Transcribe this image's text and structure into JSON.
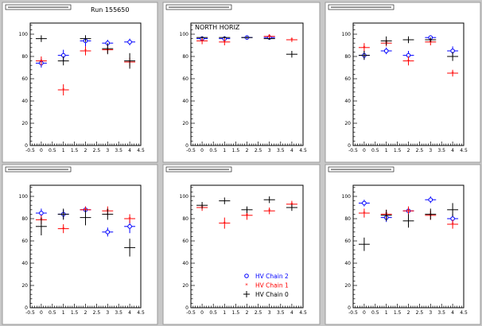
{
  "canvas": {
    "background": "#c8c8c8",
    "pad_background": "#ffffff",
    "run_label": "Run 155650",
    "colors": {
      "chain2": "#0000ff",
      "chain1": "#ff0000",
      "chain0": "#000000"
    }
  },
  "legend": [
    {
      "label": "HV Chain 2",
      "series": "chain2",
      "marker": "open-circle"
    },
    {
      "label": "HV Chain 1",
      "series": "chain1",
      "marker": "star"
    },
    {
      "label": "HV Chain 0",
      "series": "chain0",
      "marker": "cross"
    }
  ],
  "chart_data": [
    {
      "type": "scatter",
      "title": "",
      "annotation": "",
      "xlim": [
        -0.5,
        4.5
      ],
      "ylim": [
        0,
        110
      ],
      "xticks": [
        "-0.5",
        "0",
        "0.5",
        "1",
        "1.5",
        "2",
        "2.5",
        "3",
        "3.5",
        "4",
        "4.5"
      ],
      "yticks": [
        "0",
        "20",
        "40",
        "60",
        "80",
        "100"
      ],
      "series": [
        {
          "key": "chain2",
          "x": [
            0,
            1,
            2,
            3,
            4
          ],
          "y": [
            74,
            81,
            94,
            92,
            93
          ],
          "yerr": [
            4,
            5,
            5,
            3,
            3
          ]
        },
        {
          "key": "chain1",
          "x": [
            0,
            1,
            2,
            3,
            4
          ],
          "y": [
            76,
            50,
            85,
            86,
            75
          ],
          "yerr": [
            4,
            5,
            4,
            3,
            4
          ]
        },
        {
          "key": "chain0",
          "x": [
            0,
            1,
            2,
            3,
            4
          ],
          "y": [
            96,
            76,
            96,
            87,
            76
          ],
          "yerr": [
            3,
            4,
            3,
            5,
            7
          ]
        }
      ]
    },
    {
      "type": "scatter",
      "title": "",
      "annotation": "NORTH HORIZ",
      "xlim": [
        -0.5,
        4.5
      ],
      "ylim": [
        0,
        110
      ],
      "xticks": [
        "-0.5",
        "0",
        "0.5",
        "1",
        "1.5",
        "2",
        "2.5",
        "3",
        "3.5",
        "4",
        "4.5"
      ],
      "yticks": [
        "0",
        "20",
        "40",
        "60",
        "80",
        "100"
      ],
      "series": [
        {
          "key": "chain2",
          "x": [
            0,
            1,
            2,
            3
          ],
          "y": [
            96,
            96,
            97,
            97
          ],
          "yerr": [
            2,
            2,
            1,
            1
          ]
        },
        {
          "key": "chain1",
          "x": [
            0,
            1,
            3,
            4
          ],
          "y": [
            94,
            93,
            98,
            95
          ],
          "yerr": [
            3,
            3,
            2,
            2
          ]
        },
        {
          "key": "chain0",
          "x": [
            0,
            1,
            2,
            3,
            4
          ],
          "y": [
            97,
            97,
            97,
            96,
            82
          ],
          "yerr": [
            1,
            1,
            1,
            1,
            3
          ]
        }
      ]
    },
    {
      "type": "scatter",
      "title": "",
      "annotation": "",
      "xlim": [
        -0.5,
        4.5
      ],
      "ylim": [
        0,
        110
      ],
      "xticks": [
        "-0.5",
        "0",
        "0.5",
        "1",
        "1.5",
        "2",
        "2.5",
        "3",
        "3.5",
        "4",
        "4.5"
      ],
      "yticks": [
        "0",
        "20",
        "40",
        "60",
        "80",
        "100"
      ],
      "series": [
        {
          "key": "chain2",
          "x": [
            0,
            1,
            2,
            3,
            4
          ],
          "y": [
            81,
            85,
            81,
            97,
            85
          ],
          "yerr": [
            4,
            3,
            4,
            2,
            4
          ]
        },
        {
          "key": "chain1",
          "x": [
            0,
            1,
            2,
            3,
            4
          ],
          "y": [
            88,
            92,
            76,
            93,
            65
          ],
          "yerr": [
            4,
            3,
            4,
            3,
            3
          ]
        },
        {
          "key": "chain0",
          "x": [
            0,
            1,
            2,
            3,
            4
          ],
          "y": [
            81,
            94,
            95,
            95,
            80
          ],
          "yerr": [
            4,
            4,
            3,
            2,
            4
          ]
        }
      ]
    },
    {
      "type": "scatter",
      "title": "",
      "annotation": "",
      "xlim": [
        -0.5,
        4.5
      ],
      "ylim": [
        0,
        110
      ],
      "xticks": [
        "-0.5",
        "0",
        "0.5",
        "1",
        "1.5",
        "2",
        "2.5",
        "3",
        "3.5",
        "4",
        "4.5"
      ],
      "yticks": [
        "0",
        "20",
        "40",
        "60",
        "80",
        "100"
      ],
      "series": [
        {
          "key": "chain2",
          "x": [
            0,
            1,
            2,
            3,
            4
          ],
          "y": [
            85,
            84,
            88,
            68,
            73
          ],
          "yerr": [
            4,
            4,
            3,
            4,
            6
          ]
        },
        {
          "key": "chain1",
          "x": [
            0,
            1,
            2,
            3,
            4
          ],
          "y": [
            79,
            71,
            88,
            87,
            80
          ],
          "yerr": [
            4,
            4,
            3,
            4,
            4
          ]
        },
        {
          "key": "chain0",
          "x": [
            0,
            1,
            2,
            3,
            4
          ],
          "y": [
            73,
            84,
            81,
            84,
            54
          ],
          "yerr": [
            8,
            5,
            7,
            5,
            8
          ]
        }
      ]
    },
    {
      "type": "scatter",
      "title": "",
      "annotation": "",
      "xlim": [
        -0.5,
        4.5
      ],
      "ylim": [
        0,
        110
      ],
      "xticks": [
        "-0.5",
        "0",
        "0.5",
        "1",
        "1.5",
        "2",
        "2.5",
        "3",
        "3.5",
        "4",
        "4.5"
      ],
      "yticks": [
        "0",
        "20",
        "40",
        "60",
        "80",
        "100"
      ],
      "series": [
        {
          "key": "chain2",
          "x": [],
          "y": [],
          "yerr": []
        },
        {
          "key": "chain1",
          "x": [
            0,
            1,
            2,
            3,
            4
          ],
          "y": [
            90,
            76,
            83,
            87,
            93
          ],
          "yerr": [
            3,
            5,
            4,
            3,
            3
          ]
        },
        {
          "key": "chain0",
          "x": [
            0,
            1,
            2,
            3,
            4
          ],
          "y": [
            92,
            96,
            88,
            97,
            90
          ],
          "yerr": [
            3,
            3,
            3,
            3,
            3
          ]
        }
      ]
    },
    {
      "type": "scatter",
      "title": "",
      "annotation": "",
      "xlim": [
        -0.5,
        4.5
      ],
      "ylim": [
        0,
        110
      ],
      "xticks": [
        "-0.5",
        "0",
        "0.5",
        "1",
        "1.5",
        "2",
        "2.5",
        "3",
        "3.5",
        "4",
        "4.5"
      ],
      "yticks": [
        "0",
        "20",
        "40",
        "60",
        "80",
        "100"
      ],
      "series": [
        {
          "key": "chain2",
          "x": [
            0,
            1,
            2,
            3,
            4
          ],
          "y": [
            94,
            81,
            87,
            97,
            80
          ],
          "yerr": [
            3,
            4,
            3,
            3,
            4
          ]
        },
        {
          "key": "chain1",
          "x": [
            0,
            1,
            2,
            3,
            4
          ],
          "y": [
            85,
            84,
            87,
            83,
            75
          ],
          "yerr": [
            4,
            4,
            4,
            4,
            4
          ]
        },
        {
          "key": "chain0",
          "x": [
            0,
            1,
            2,
            3,
            4
          ],
          "y": [
            57,
            83,
            78,
            84,
            88
          ],
          "yerr": [
            6,
            5,
            6,
            5,
            6
          ]
        }
      ]
    }
  ]
}
